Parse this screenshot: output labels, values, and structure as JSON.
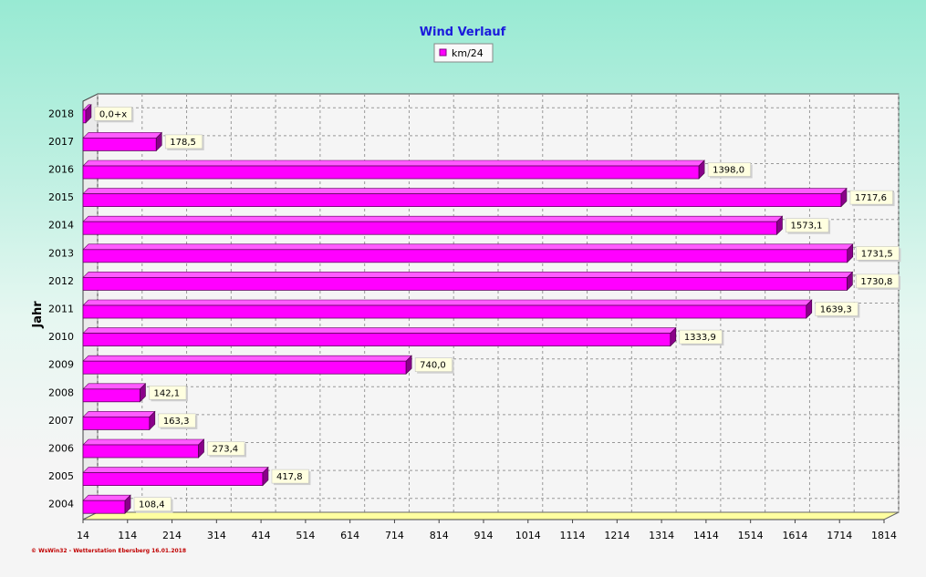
{
  "chart_data": {
    "type": "bar",
    "orientation": "horizontal",
    "title": "Wind Verlauf",
    "ylabel": "Jahr",
    "xlabel": "",
    "legend": {
      "label": "km/24",
      "position": "top-center"
    },
    "categories": [
      "2004",
      "2005",
      "2006",
      "2007",
      "2008",
      "2009",
      "2010",
      "2011",
      "2012",
      "2013",
      "2014",
      "2015",
      "2016",
      "2017",
      "2018"
    ],
    "series": [
      {
        "name": "km/24",
        "color": "#ff00ff",
        "values": [
          108.4,
          417.8,
          273.4,
          163.3,
          142.1,
          740.0,
          1333.9,
          1639.3,
          1730.8,
          1731.5,
          1573.1,
          1717.6,
          1398.0,
          178.5,
          0
        ],
        "labels": [
          "108,4",
          "417,8",
          "273,4",
          "163,3",
          "142,1",
          "740,0",
          "1333,9",
          "1639,3",
          "1730,8",
          "1731,5",
          "1573,1",
          "1717,6",
          "1398,0",
          "178,5",
          "0,0+x"
        ]
      }
    ],
    "xlim": [
      14,
      1814
    ],
    "xticks": [
      "14",
      "114",
      "214",
      "314",
      "414",
      "514",
      "614",
      "714",
      "814",
      "914",
      "1014",
      "1114",
      "1214",
      "1314",
      "1414",
      "1514",
      "1614",
      "1714",
      "1814"
    ],
    "grid": true,
    "colors": {
      "bar": "#ff00ff",
      "bar_dark": "#8a008a",
      "plot_bg": "#f5f5f5",
      "floor": "#ffffa0",
      "label_bg": "#ffffe0",
      "title": "#1a1adc"
    }
  },
  "footer": "© WsWin32 - Wetterstation Ebersberg 16.01.2018"
}
